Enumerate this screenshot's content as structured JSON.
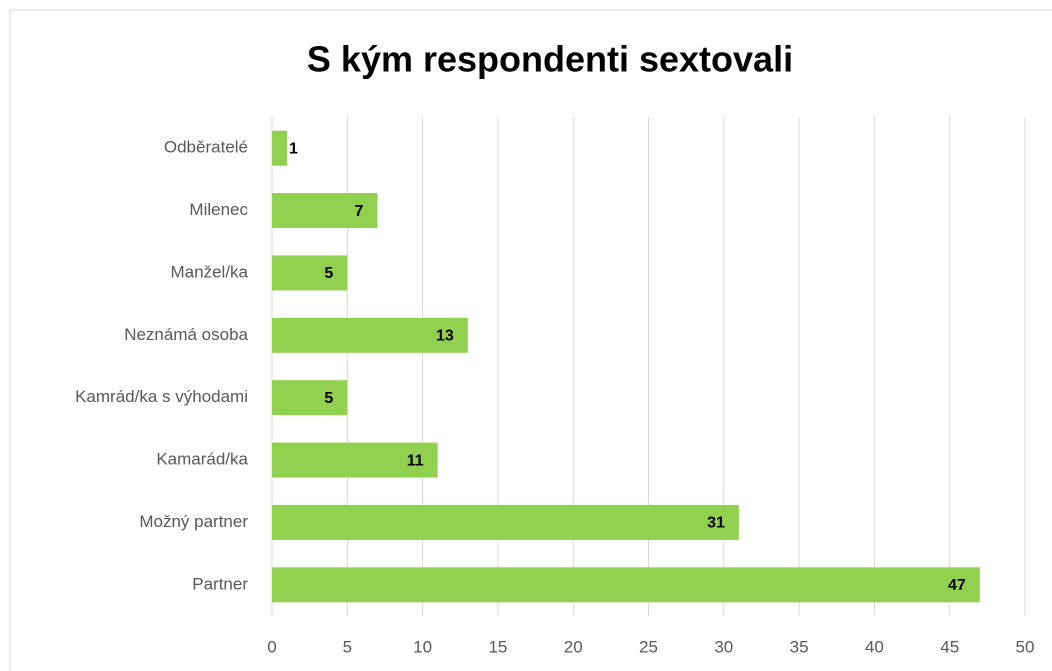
{
  "chart_data": {
    "type": "bar",
    "orientation": "horizontal",
    "title": "S kým respondenti sextovali",
    "categories": [
      "Odběratelé",
      "Milenec",
      "Manžel/ka",
      "Neznámá osoba",
      "Kamrád/ka s výhodami",
      "Kamarád/ka",
      "Možný partner",
      "Partner"
    ],
    "values": [
      1,
      7,
      5,
      13,
      5,
      11,
      31,
      47
    ],
    "color": "#92d050",
    "xlim": [
      0,
      50
    ],
    "xticks": [
      0,
      5,
      10,
      15,
      20,
      25,
      30,
      35,
      40,
      45,
      50
    ],
    "grid": true
  }
}
